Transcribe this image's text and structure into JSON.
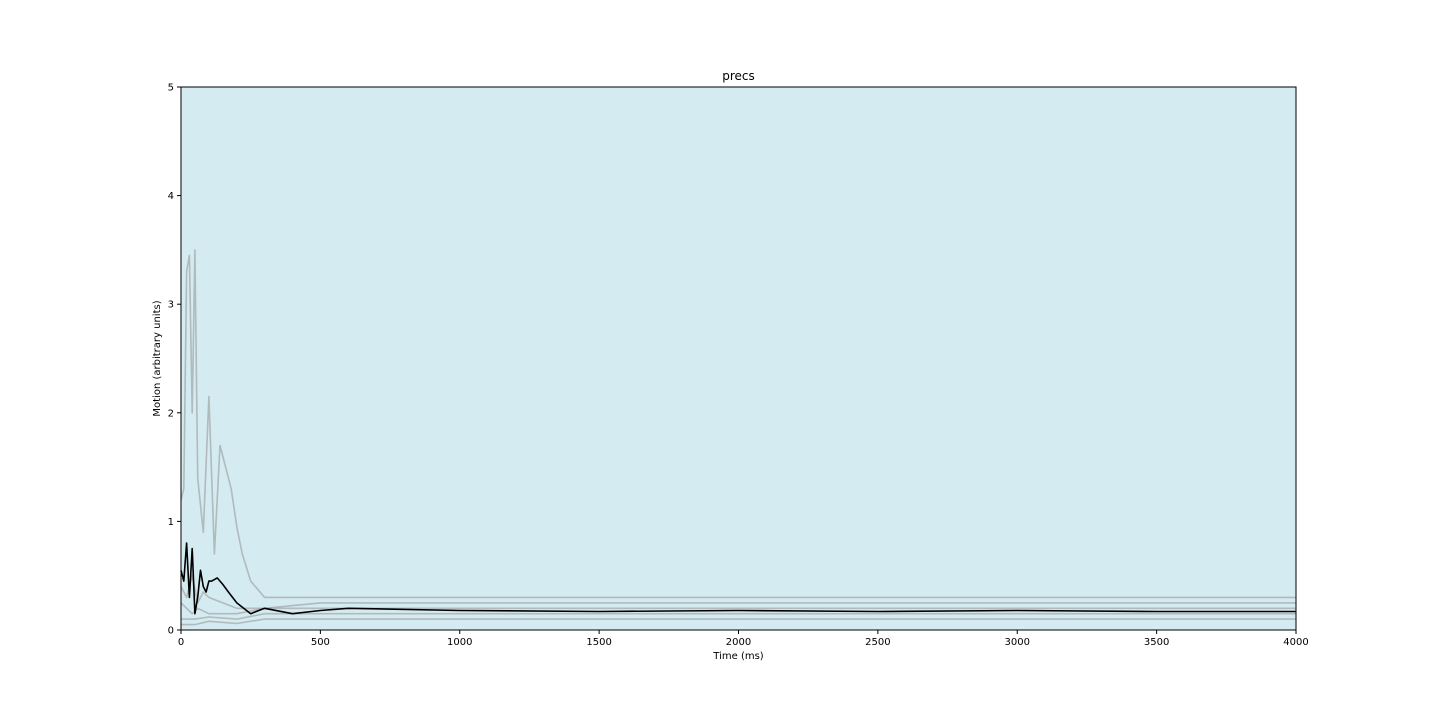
{
  "chart_data": {
    "type": "line",
    "title": "precs",
    "xlabel": "Time (ms)",
    "ylabel": "Motion (arbitrary units)",
    "xlim": [
      0,
      4000
    ],
    "ylim": [
      0,
      5
    ],
    "xticks": [
      "0",
      "500",
      "1000",
      "1500",
      "2000",
      "2500",
      "3000",
      "3500",
      "4000"
    ],
    "yticks": [
      "0",
      "1",
      "2",
      "3",
      "4",
      "5"
    ],
    "grid": false,
    "legend": "none",
    "colors": {
      "background": "#d4ebf1",
      "individual": "#999999",
      "mean": "#000000"
    },
    "series": [
      {
        "role": "individual",
        "x": [
          0,
          10,
          20,
          30,
          40,
          50,
          60,
          80,
          100,
          120,
          140,
          160,
          180,
          200,
          220,
          250,
          300,
          400,
          600,
          800,
          1000,
          1500,
          2000,
          2500,
          3000,
          3500,
          4000
        ],
        "y": [
          1.2,
          1.3,
          3.3,
          3.45,
          2.0,
          3.5,
          1.4,
          0.9,
          2.15,
          0.7,
          1.7,
          1.5,
          1.3,
          0.95,
          0.7,
          0.45,
          0.3,
          0.3,
          0.3,
          0.3,
          0.3,
          0.3,
          0.3,
          0.3,
          0.3,
          0.3,
          0.3
        ]
      },
      {
        "role": "individual",
        "x": [
          0,
          20,
          40,
          60,
          80,
          100,
          150,
          200,
          300,
          500,
          1000,
          1500,
          2000,
          2500,
          3000,
          3500,
          4000
        ],
        "y": [
          0.4,
          0.3,
          0.5,
          0.25,
          0.35,
          0.3,
          0.25,
          0.2,
          0.2,
          0.2,
          0.2,
          0.2,
          0.2,
          0.2,
          0.2,
          0.2,
          0.2
        ]
      },
      {
        "role": "individual",
        "x": [
          0,
          20,
          40,
          60,
          100,
          200,
          300,
          500,
          1000,
          1500,
          2000,
          2500,
          3000,
          3500,
          4000
        ],
        "y": [
          0.25,
          0.2,
          0.15,
          0.2,
          0.15,
          0.15,
          0.2,
          0.25,
          0.25,
          0.25,
          0.25,
          0.25,
          0.25,
          0.25,
          0.25
        ]
      },
      {
        "role": "individual",
        "x": [
          0,
          50,
          100,
          200,
          300,
          500,
          1000,
          1500,
          2000,
          2500,
          3000,
          3500,
          4000
        ],
        "y": [
          0.1,
          0.1,
          0.12,
          0.1,
          0.15,
          0.15,
          0.15,
          0.15,
          0.15,
          0.15,
          0.15,
          0.15,
          0.15
        ]
      },
      {
        "role": "individual",
        "x": [
          0,
          50,
          100,
          200,
          300,
          500,
          1000,
          1500,
          2000,
          2500,
          3000,
          3500,
          4000
        ],
        "y": [
          0.05,
          0.05,
          0.08,
          0.06,
          0.1,
          0.1,
          0.1,
          0.1,
          0.1,
          0.1,
          0.1,
          0.1,
          0.1
        ]
      },
      {
        "role": "mean",
        "x": [
          0,
          10,
          20,
          30,
          40,
          50,
          60,
          70,
          80,
          90,
          100,
          110,
          130,
          150,
          170,
          200,
          250,
          300,
          400,
          500,
          600,
          1000,
          1500,
          2000,
          2500,
          3000,
          3500,
          4000
        ],
        "y": [
          0.55,
          0.45,
          0.8,
          0.3,
          0.75,
          0.15,
          0.3,
          0.55,
          0.4,
          0.35,
          0.45,
          0.45,
          0.48,
          0.42,
          0.35,
          0.25,
          0.15,
          0.2,
          0.15,
          0.18,
          0.2,
          0.18,
          0.17,
          0.18,
          0.17,
          0.18,
          0.17,
          0.17
        ]
      }
    ]
  }
}
